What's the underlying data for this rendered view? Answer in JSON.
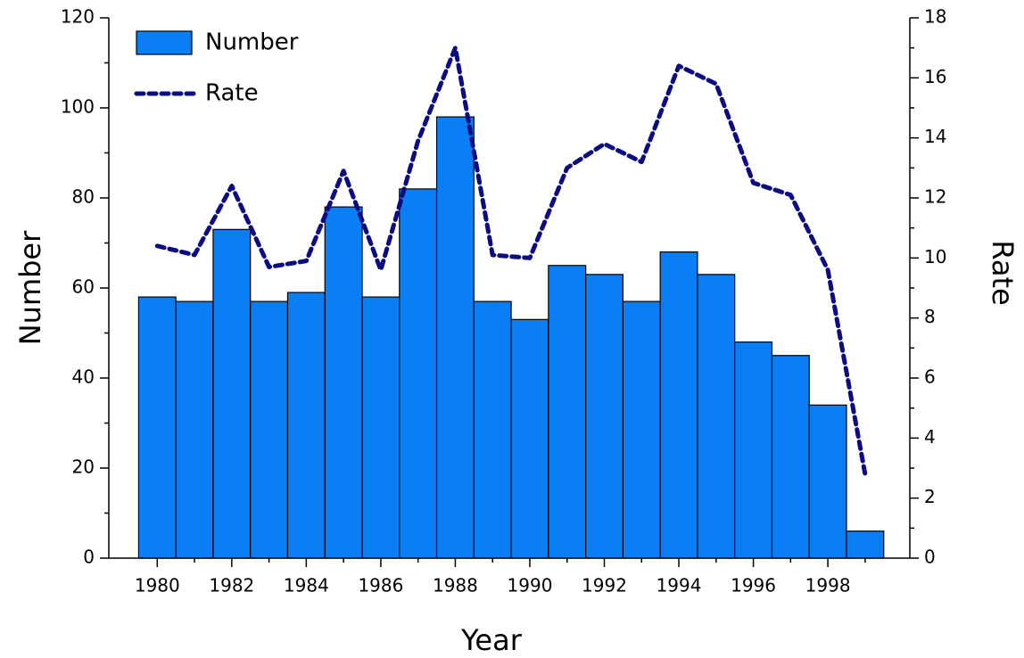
{
  "chart_data": {
    "type": "bar-line",
    "x_label": "Year",
    "y_label": "Number",
    "y2_label": "Rate",
    "x": [
      1980,
      1981,
      1982,
      1983,
      1984,
      1985,
      1986,
      1987,
      1988,
      1989,
      1990,
      1991,
      1992,
      1993,
      1994,
      1995,
      1996,
      1997,
      1998,
      1999
    ],
    "series": [
      {
        "name": "Number",
        "type": "bar",
        "color": "#0a7ff5",
        "values": [
          58,
          57,
          73,
          57,
          59,
          78,
          58,
          82,
          98,
          57,
          53,
          65,
          63,
          57,
          68,
          63,
          48,
          45,
          34,
          6
        ]
      },
      {
        "name": "Rate",
        "type": "line",
        "axis": "y2",
        "color": "#0c0c82",
        "values": [
          10.4,
          10.1,
          12.4,
          9.7,
          9.9,
          12.9,
          9.6,
          13.9,
          17.0,
          10.1,
          10.0,
          13.0,
          13.8,
          13.2,
          16.4,
          15.8,
          12.5,
          12.1,
          9.6,
          2.8
        ]
      }
    ],
    "xlim": [
      1978.7,
      2000.2
    ],
    "xticks": [
      1980,
      1982,
      1984,
      1986,
      1988,
      1990,
      1992,
      1994,
      1996,
      1998
    ],
    "ylim": [
      0,
      120
    ],
    "yticks": [
      0,
      20,
      40,
      60,
      80,
      100,
      120
    ],
    "y2lim": [
      0,
      18
    ],
    "y2ticks": [
      0,
      2,
      4,
      6,
      8,
      10,
      12,
      14,
      16,
      18
    ],
    "legend": "top-left"
  }
}
